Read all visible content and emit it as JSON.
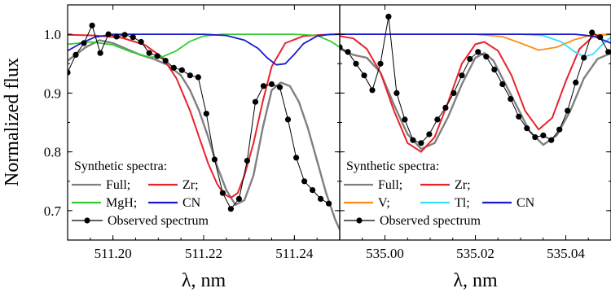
{
  "ylabel": "Normalized flux",
  "chart_data": [
    {
      "type": "line",
      "panel": "left",
      "xlabel": "λ, nm",
      "ylabel": "Normalized flux",
      "xlim": [
        511.19,
        511.25
      ],
      "ylim": [
        0.65,
        1.05
      ],
      "x_ticks": [
        "511.20",
        "511.22",
        "511.24"
      ],
      "y_ticks": [
        "0.7",
        "0.8",
        "0.9",
        "1.0"
      ],
      "legend_title": "Synthetic spectra:",
      "legend_rows": [
        [
          "Full;",
          "Zr;"
        ],
        [
          "MgH;",
          "CN"
        ],
        [
          "Observed spectrum"
        ]
      ],
      "series": [
        {
          "name": "Full",
          "color": "#808080",
          "x": [
            511.19,
            511.194,
            511.197,
            511.2,
            511.203,
            511.206,
            511.209,
            511.212,
            511.215,
            511.217,
            511.219,
            511.221,
            511.223,
            511.225,
            511.227,
            511.229,
            511.231,
            511.233,
            511.235,
            511.237,
            511.239,
            511.241,
            511.243,
            511.245,
            511.247,
            511.249,
            511.25
          ],
          "y": [
            0.955,
            0.978,
            0.99,
            0.985,
            0.975,
            0.965,
            0.958,
            0.948,
            0.93,
            0.905,
            0.87,
            0.825,
            0.775,
            0.735,
            0.71,
            0.718,
            0.76,
            0.84,
            0.905,
            0.918,
            0.912,
            0.885,
            0.84,
            0.785,
            0.73,
            0.685,
            0.668
          ]
        },
        {
          "name": "Zr",
          "color": "#e8232a",
          "x": [
            511.19,
            511.196,
            511.202,
            511.207,
            511.211,
            511.214,
            511.217,
            511.219,
            511.221,
            511.223,
            511.2245,
            511.226,
            511.2275,
            511.229,
            511.231,
            511.233,
            511.235,
            511.238,
            511.242,
            511.246,
            511.25
          ],
          "y": [
            0.999,
            0.998,
            0.994,
            0.982,
            0.96,
            0.925,
            0.87,
            0.825,
            0.78,
            0.745,
            0.728,
            0.722,
            0.73,
            0.76,
            0.815,
            0.885,
            0.945,
            0.985,
            0.997,
            0.999,
            1.0
          ]
        },
        {
          "name": "MgH",
          "color": "#33cc33",
          "x": [
            511.19,
            511.195,
            511.2,
            511.204,
            511.208,
            511.211,
            511.214,
            511.217,
            511.22,
            511.224,
            511.23,
            511.24,
            511.245,
            511.248,
            511.25
          ],
          "y": [
            0.983,
            0.987,
            0.982,
            0.97,
            0.961,
            0.962,
            0.972,
            0.988,
            0.997,
            1.0,
            1.0,
            1.0,
            0.998,
            0.988,
            0.978
          ]
        },
        {
          "name": "CN",
          "color": "#1a1acc",
          "x": [
            511.19,
            511.193,
            511.196,
            511.2,
            511.21,
            511.22,
            511.225,
            511.229,
            511.232,
            511.234,
            511.236,
            511.238,
            511.24,
            511.242,
            511.245,
            511.248,
            511.25
          ],
          "y": [
            0.972,
            0.985,
            0.995,
            1.0,
            1.0,
            1.0,
            0.998,
            0.99,
            0.976,
            0.96,
            0.948,
            0.95,
            0.966,
            0.984,
            0.997,
            1.0,
            1.0
          ]
        },
        {
          "name": "Observed spectrum",
          "color": "#000000",
          "markers": true,
          "x": [
            511.19,
            511.1918,
            511.1936,
            511.1954,
            511.1972,
            511.199,
            511.2008,
            511.2026,
            511.2044,
            511.2062,
            511.208,
            511.2098,
            511.2116,
            511.2134,
            511.2152,
            511.217,
            511.2188,
            511.2206,
            511.2224,
            511.2242,
            511.226,
            511.2278,
            511.2296,
            511.2314,
            511.2332,
            511.235,
            511.2368,
            511.2386,
            511.2404,
            511.2422,
            511.244,
            511.2458,
            511.2476
          ],
          "y": [
            0.935,
            0.965,
            0.985,
            1.015,
            0.968,
            1.0,
            0.996,
            0.999,
            0.995,
            0.987,
            0.968,
            0.963,
            0.955,
            0.943,
            0.939,
            0.93,
            0.927,
            0.865,
            0.787,
            0.73,
            0.703,
            0.72,
            0.785,
            0.885,
            0.912,
            0.915,
            0.91,
            0.855,
            0.79,
            0.75,
            0.735,
            0.72,
            0.712
          ]
        }
      ]
    },
    {
      "type": "line",
      "panel": "right",
      "xlabel": "λ, nm",
      "xlim": [
        534.99,
        535.05
      ],
      "ylim": [
        0.65,
        1.05
      ],
      "x_ticks": [
        "535.00",
        "535.02",
        "535.04"
      ],
      "legend_title": "Synthetic spectra:",
      "legend_rows": [
        [
          "Full;",
          "Zr;"
        ],
        [
          "V;",
          "Tl;",
          "CN"
        ],
        [
          "Observed spectrum"
        ]
      ],
      "series": [
        {
          "name": "Full",
          "color": "#808080",
          "x": [
            534.99,
            534.993,
            534.996,
            534.999,
            535.002,
            535.005,
            535.008,
            535.011,
            535.014,
            535.017,
            535.02,
            535.022,
            535.024,
            535.026,
            535.029,
            535.032,
            535.035,
            535.038,
            535.041,
            535.044,
            535.047,
            535.05
          ],
          "y": [
            0.975,
            0.965,
            0.96,
            0.935,
            0.88,
            0.83,
            0.805,
            0.815,
            0.86,
            0.915,
            0.96,
            0.968,
            0.955,
            0.925,
            0.88,
            0.835,
            0.812,
            0.828,
            0.87,
            0.925,
            0.958,
            0.968
          ]
        },
        {
          "name": "Zr",
          "color": "#e8232a",
          "x": [
            534.99,
            534.993,
            534.996,
            534.999,
            535.002,
            535.005,
            535.008,
            535.011,
            535.014,
            535.017,
            535.02,
            535.022,
            535.025,
            535.028,
            535.031,
            535.034,
            535.037,
            535.04,
            535.043,
            535.046,
            535.048,
            535.05
          ],
          "y": [
            0.997,
            0.993,
            0.975,
            0.935,
            0.87,
            0.815,
            0.8,
            0.825,
            0.885,
            0.95,
            0.983,
            0.987,
            0.972,
            0.93,
            0.87,
            0.838,
            0.858,
            0.92,
            0.975,
            0.996,
            0.999,
            1.0
          ]
        },
        {
          "name": "V",
          "color": "#ff8c1a",
          "x": [
            534.99,
            535.01,
            535.02,
            535.026,
            535.03,
            535.034,
            535.038,
            535.042,
            535.046,
            535.05
          ],
          "y": [
            1.0,
            1.0,
            1.0,
            0.996,
            0.985,
            0.973,
            0.978,
            0.991,
            0.999,
            1.0
          ]
        },
        {
          "name": "Tl",
          "color": "#33e0ff",
          "x": [
            534.99,
            535.03,
            535.035,
            535.039,
            535.042,
            535.044,
            535.046,
            535.048,
            535.05
          ],
          "y": [
            1.0,
            1.0,
            0.998,
            0.987,
            0.97,
            0.962,
            0.966,
            0.982,
            0.995
          ]
        },
        {
          "name": "CN",
          "color": "#1a1acc",
          "x": [
            534.99,
            535.03,
            535.042,
            535.046,
            535.048,
            535.05
          ],
          "y": [
            1.0,
            1.0,
            1.0,
            0.997,
            0.991,
            0.985
          ]
        },
        {
          "name": "Observed spectrum",
          "color": "#000000",
          "markers": true,
          "x": [
            534.99,
            534.9918,
            534.9936,
            534.9954,
            534.9972,
            534.999,
            535.0008,
            535.0026,
            535.0044,
            535.0062,
            535.008,
            535.0098,
            535.0116,
            535.0134,
            535.0152,
            535.017,
            535.0188,
            535.0206,
            535.0224,
            535.0242,
            535.026,
            535.0278,
            535.0296,
            535.0314,
            535.0332,
            535.035,
            535.0368,
            535.0386,
            535.0404,
            535.0422,
            535.044,
            535.0458,
            535.0476,
            535.0494
          ],
          "y": [
            0.978,
            0.97,
            0.95,
            0.93,
            0.905,
            0.95,
            1.03,
            0.9,
            0.855,
            0.82,
            0.815,
            0.83,
            0.855,
            0.875,
            0.9,
            0.93,
            0.958,
            0.97,
            0.962,
            0.94,
            0.915,
            0.89,
            0.86,
            0.84,
            0.825,
            0.828,
            0.82,
            0.838,
            0.87,
            0.918,
            0.96,
            1.003,
            0.995,
            0.97
          ]
        }
      ]
    }
  ]
}
